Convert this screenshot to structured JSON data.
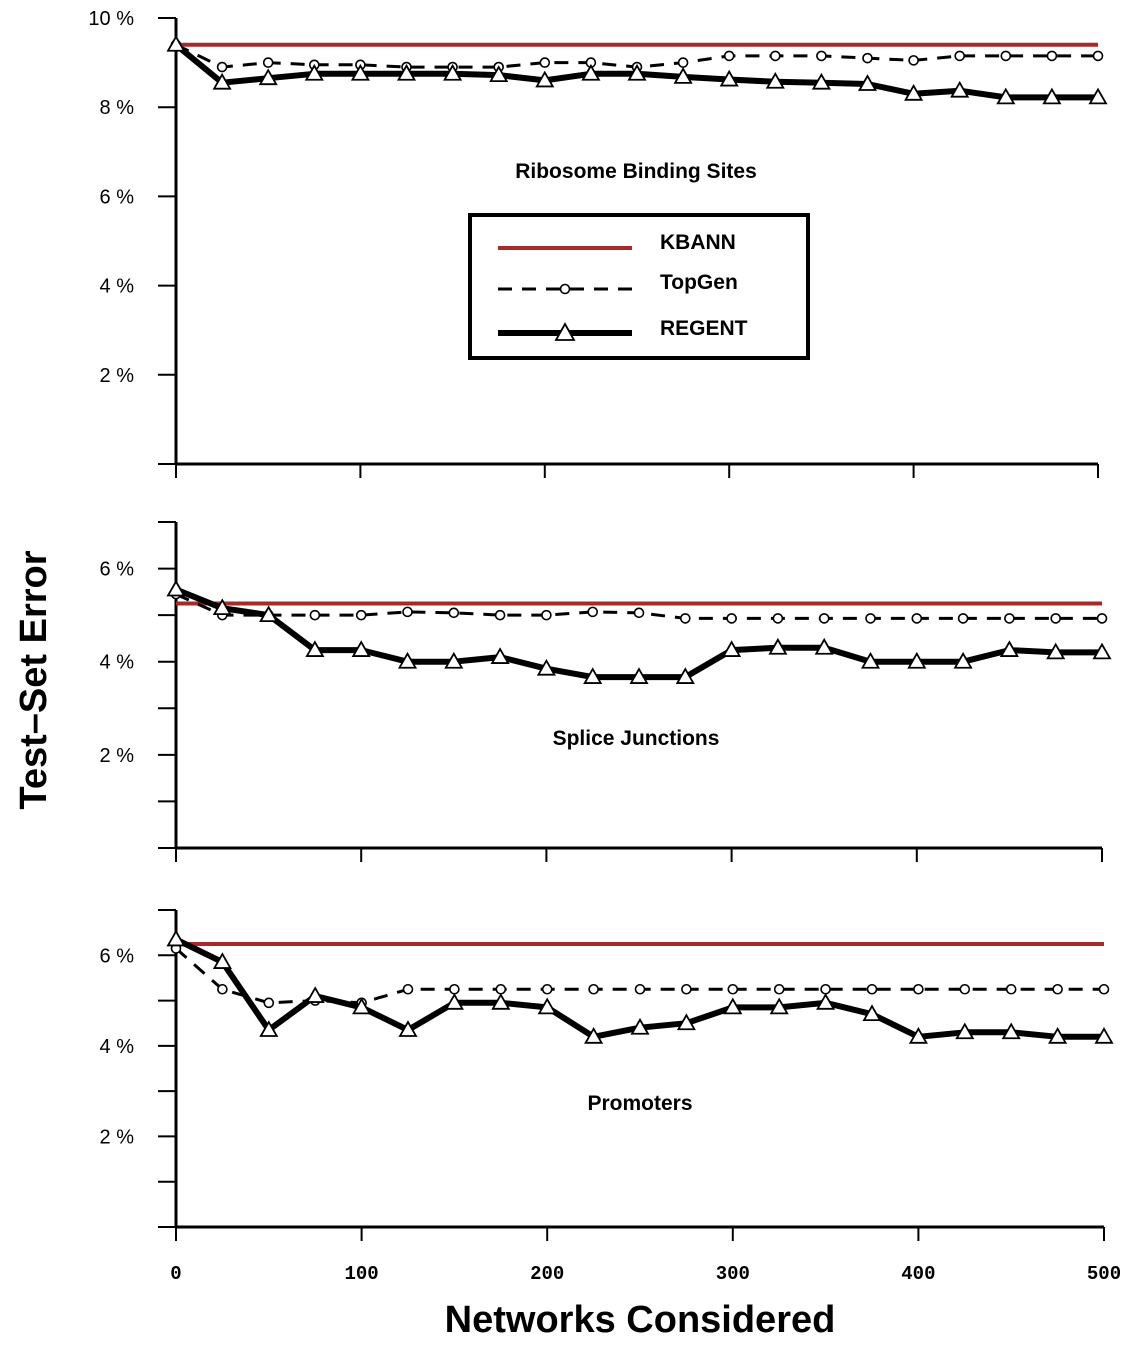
{
  "chart_data": {
    "type": "line",
    "xlabel": "Networks Considered",
    "ylabel": "Test–Set Error",
    "xlim": [
      0,
      500
    ],
    "x_ticks": [
      0,
      100,
      200,
      300,
      400,
      500
    ],
    "x_tick_labels": [
      "0",
      "100",
      "200",
      "300",
      "400",
      "500"
    ],
    "legend": {
      "placement": "inside top panel, center",
      "entries": [
        {
          "name": "KBANN",
          "color": "#a52a2a",
          "style": "solid thin"
        },
        {
          "name": "TopGen",
          "color": "#000000",
          "style": "dashed with circle markers"
        },
        {
          "name": "REGENT",
          "color": "#000000",
          "style": "thick solid with triangle markers"
        }
      ]
    },
    "panels": [
      {
        "title": "Ribosome Binding Sites",
        "ylim": [
          0,
          10
        ],
        "y_ticks": [
          2,
          4,
          6,
          8,
          10
        ],
        "y_tick_labels": [
          "2 %",
          "4 %",
          "6 %",
          "8 %",
          "10 %"
        ],
        "series": [
          {
            "name": "KBANN",
            "x": [
              0,
              500
            ],
            "values": [
              9.4,
              9.4
            ]
          },
          {
            "name": "TopGen",
            "x": [
              0,
              25,
              50,
              75,
              100,
              125,
              150,
              175,
              200,
              225,
              250,
              275,
              300,
              325,
              350,
              375,
              400,
              425,
              450,
              475,
              500
            ],
            "values": [
              9.4,
              8.9,
              9.0,
              8.95,
              8.95,
              8.9,
              8.9,
              8.9,
              9.0,
              9.0,
              8.9,
              9.0,
              9.15,
              9.15,
              9.15,
              9.1,
              9.05,
              9.15,
              9.15,
              9.15,
              9.15
            ]
          },
          {
            "name": "REGENT",
            "x": [
              0,
              25,
              50,
              75,
              100,
              125,
              150,
              175,
              200,
              225,
              250,
              275,
              300,
              325,
              350,
              375,
              400,
              425,
              450,
              475,
              500
            ],
            "values": [
              9.4,
              8.55,
              8.65,
              8.75,
              8.75,
              8.75,
              8.75,
              8.72,
              8.6,
              8.75,
              8.75,
              8.68,
              8.62,
              8.57,
              8.55,
              8.52,
              8.3,
              8.37,
              8.22,
              8.22,
              8.22
            ]
          }
        ]
      },
      {
        "title": "Splice Junctions",
        "ylim": [
          0,
          7
        ],
        "y_ticks": [
          1,
          2,
          3,
          4,
          5,
          6,
          7
        ],
        "y_tick_labels": [
          "",
          "2 %",
          "",
          "4 %",
          "",
          "6 %",
          ""
        ],
        "series": [
          {
            "name": "KBANN",
            "x": [
              0,
              500
            ],
            "values": [
              5.25,
              5.25
            ]
          },
          {
            "name": "TopGen",
            "x": [
              0,
              25,
              50,
              75,
              100,
              125,
              150,
              175,
              200,
              225,
              250,
              275,
              300,
              325,
              350,
              375,
              400,
              425,
              450,
              475,
              500
            ],
            "values": [
              5.45,
              5.0,
              5.0,
              5.0,
              5.0,
              5.07,
              5.05,
              5.0,
              5.0,
              5.07,
              5.05,
              4.93,
              4.93,
              4.93,
              4.93,
              4.93,
              4.93,
              4.93,
              4.93,
              4.93,
              4.93
            ]
          },
          {
            "name": "REGENT",
            "x": [
              0,
              25,
              50,
              75,
              100,
              125,
              150,
              175,
              200,
              225,
              250,
              275,
              300,
              325,
              350,
              375,
              400,
              425,
              450,
              475,
              500
            ],
            "values": [
              5.55,
              5.15,
              5.0,
              4.25,
              4.25,
              4.0,
              4.0,
              4.1,
              3.85,
              3.67,
              3.67,
              3.67,
              4.25,
              4.3,
              4.3,
              4.0,
              4.0,
              4.0,
              4.25,
              4.2,
              4.2
            ]
          }
        ]
      },
      {
        "title": "Promoters",
        "ylim": [
          0,
          7
        ],
        "y_ticks": [
          1,
          2,
          3,
          4,
          5,
          6,
          7
        ],
        "y_tick_labels": [
          "",
          "2 %",
          "",
          "4 %",
          "",
          "6 %",
          ""
        ],
        "series": [
          {
            "name": "KBANN",
            "x": [
              0,
              500
            ],
            "values": [
              6.25,
              6.25
            ]
          },
          {
            "name": "TopGen",
            "x": [
              0,
              25,
              50,
              75,
              100,
              125,
              150,
              175,
              200,
              225,
              250,
              275,
              300,
              325,
              350,
              375,
              400,
              425,
              450,
              475,
              500
            ],
            "values": [
              6.15,
              5.25,
              4.95,
              5.0,
              4.95,
              5.25,
              5.25,
              5.25,
              5.25,
              5.25,
              5.25,
              5.25,
              5.25,
              5.25,
              5.25,
              5.25,
              5.25,
              5.25,
              5.25,
              5.25,
              5.25
            ]
          },
          {
            "name": "REGENT",
            "x": [
              0,
              25,
              50,
              75,
              100,
              125,
              150,
              175,
              200,
              225,
              250,
              275,
              300,
              325,
              350,
              375,
              400,
              425,
              450,
              475,
              500
            ],
            "values": [
              6.35,
              5.85,
              4.35,
              5.1,
              4.85,
              4.35,
              4.95,
              4.95,
              4.85,
              4.2,
              4.4,
              4.5,
              4.85,
              4.85,
              4.95,
              4.7,
              4.2,
              4.3,
              4.3,
              4.2,
              4.2
            ]
          }
        ]
      }
    ]
  }
}
